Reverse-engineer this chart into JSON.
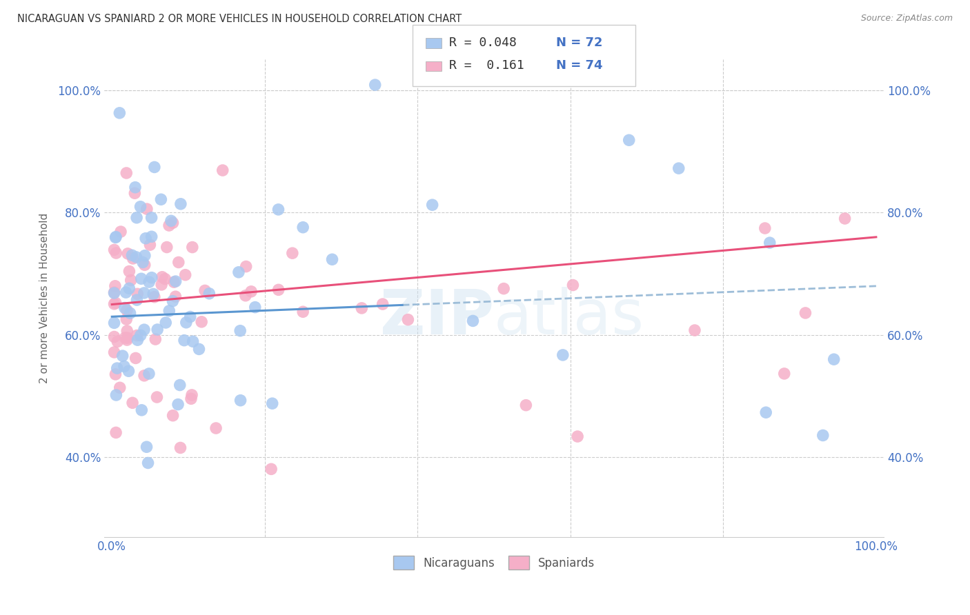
{
  "title": "NICARAGUAN VS SPANIARD 2 OR MORE VEHICLES IN HOUSEHOLD CORRELATION CHART",
  "source": "Source: ZipAtlas.com",
  "ylabel": "2 or more Vehicles in Household",
  "legend_label1": "Nicaraguans",
  "legend_label2": "Spaniards",
  "legend_r1": "R = 0.048",
  "legend_n1": "N = 72",
  "legend_r2": "R =  0.161",
  "legend_n2": "N = 74",
  "color_blue": "#a8c8f0",
  "color_pink": "#f5afc8",
  "line_blue": "#5a96d0",
  "line_pink": "#e8507a",
  "line_dash_color": "#9dbdd8",
  "legend_text_color": "#4472c4",
  "bg_color": "#ffffff",
  "r_nic": 0.048,
  "r_spa": 0.161,
  "n_nic": 72,
  "n_spa": 74
}
